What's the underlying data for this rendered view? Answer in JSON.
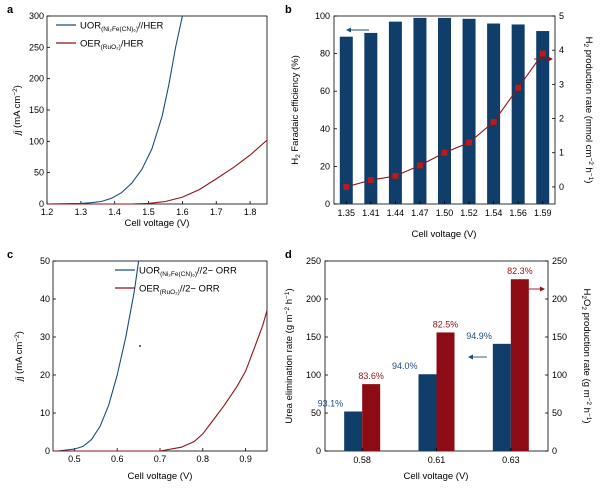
{
  "colors": {
    "blue": "#1a4e80",
    "red": "#8f1414",
    "bar_blue": "#0f3e6b",
    "bar_red": "#8c0b14",
    "marker": "#b81b1b"
  },
  "chart_data": [
    {
      "panel": "a",
      "type": "line",
      "xlabel": "Cell voltage (V)",
      "ylabel": {
        "main": "j (mA cm",
        "sup": "−2",
        "end": ")"
      },
      "xlim": [
        1.2,
        1.85
      ],
      "ylim": [
        0,
        300
      ],
      "xticks": [
        1.2,
        1.3,
        1.4,
        1.5,
        1.6,
        1.7,
        1.8
      ],
      "yticks": [
        0,
        50,
        100,
        150,
        200,
        250,
        300
      ],
      "legend": [
        {
          "pre": "UOR",
          "sub": "(Ni₂Fe(CN)₆)",
          "post": "//HER",
          "color": "#1a4e80"
        },
        {
          "pre": "OER",
          "sub": "(RuO₂)",
          "post": "/HER",
          "color": "#8f1414"
        }
      ],
      "series": [
        {
          "color": "#1a4e80",
          "x": [
            1.2,
            1.3,
            1.33,
            1.36,
            1.39,
            1.42,
            1.45,
            1.48,
            1.51,
            1.54,
            1.56,
            1.58,
            1.59,
            1.6
          ],
          "y": [
            0,
            1,
            2,
            4,
            9,
            18,
            33,
            55,
            88,
            140,
            190,
            250,
            275,
            300
          ]
        },
        {
          "color": "#8f1414",
          "x": [
            1.2,
            1.45,
            1.5,
            1.55,
            1.6,
            1.65,
            1.7,
            1.75,
            1.8,
            1.85
          ],
          "y": [
            0,
            0,
            1,
            4,
            11,
            23,
            40,
            58,
            78,
            102
          ]
        }
      ]
    },
    {
      "panel": "b",
      "type": "bar",
      "xlabel": "Cell voltage (V)",
      "ylabel_left": {
        "pre": "H",
        "sub": "2",
        "post": " Faradaic efficiency (%)"
      },
      "ylabel_right": {
        "pre": "H",
        "sub": "2",
        "post": " production rate (mmol cm",
        "sup1": "−2",
        "mid": " h",
        "sup2": "−1",
        "end": ")"
      },
      "categories": [
        "1.35",
        "1.41",
        "1.44",
        "1.47",
        "1.50",
        "1.52",
        "1.54",
        "1.56",
        "1.59"
      ],
      "bars": [
        89,
        91,
        97,
        99,
        99,
        98.5,
        96,
        95.5,
        92
      ],
      "rate": [
        0,
        0.2,
        0.32,
        0.63,
        1.0,
        1.3,
        1.9,
        2.9,
        3.9
      ],
      "ylim_left": [
        0,
        100
      ],
      "ylim_right": [
        -0.5,
        5
      ],
      "yticks_left": [
        0,
        20,
        40,
        60,
        80,
        100
      ],
      "yticks_right": [
        0,
        1,
        2,
        3,
        4,
        5
      ]
    },
    {
      "panel": "c",
      "type": "line",
      "xlabel": "Cell voltage (V)",
      "ylabel": {
        "main": "j (mA cm",
        "sup": "−2",
        "end": ")"
      },
      "xlim": [
        0.45,
        0.95
      ],
      "ylim": [
        0,
        50
      ],
      "xticks": [
        0.5,
        0.6,
        0.7,
        0.8,
        0.9
      ],
      "yticks": [
        0,
        10,
        20,
        30,
        40,
        50
      ],
      "legend": [
        {
          "pre": "UOR",
          "sub": "(Ni₂Fe(CN)₆)",
          "post": "//2− ORR",
          "color": "#1a4e80"
        },
        {
          "pre": "OER",
          "sub": "(RuO₂)",
          "post": "//2− ORR",
          "color": "#8f1414"
        }
      ],
      "series": [
        {
          "color": "#1a4e80",
          "x": [
            0.46,
            0.5,
            0.52,
            0.54,
            0.56,
            0.58,
            0.6,
            0.62,
            0.64,
            0.65
          ],
          "y": [
            0,
            0.5,
            1.2,
            3,
            6.5,
            12,
            20,
            30,
            42,
            50
          ]
        },
        {
          "color": "#8f1414",
          "x": [
            0.45,
            0.7,
            0.75,
            0.78,
            0.8,
            0.82,
            0.85,
            0.88,
            0.9,
            0.92,
            0.94,
            0.95
          ],
          "y": [
            0,
            0,
            1,
            2.5,
            4.5,
            7.5,
            12,
            17,
            21,
            27,
            33,
            37
          ]
        }
      ]
    },
    {
      "panel": "d",
      "type": "bar",
      "xlabel": "Cell voltage (V)",
      "ylabel_left": {
        "pre": "Urea elimination rate (g m",
        "sup1": "−2",
        "mid": " h",
        "sup2": "−1",
        "end": ")"
      },
      "ylabel_right": {
        "pre": "H",
        "sub1": "2",
        "mid0": "O",
        "sub2": "2",
        "post": " production rate (g m",
        "sup1": "−2",
        "mid": " h",
        "sup2": "−1",
        "end": ")"
      },
      "categories": [
        "0.58",
        "0.61",
        "0.63"
      ],
      "urea": [
        52,
        101,
        141
      ],
      "h2o2": [
        88,
        156,
        226
      ],
      "urea_labels": [
        "93.1%",
        "94.0%",
        "94.9%"
      ],
      "h2o2_labels": [
        "83.6%",
        "82.5%",
        "82.3%"
      ],
      "ylim": [
        0,
        250
      ],
      "yticks": [
        0,
        50,
        100,
        150,
        200,
        250
      ]
    }
  ]
}
